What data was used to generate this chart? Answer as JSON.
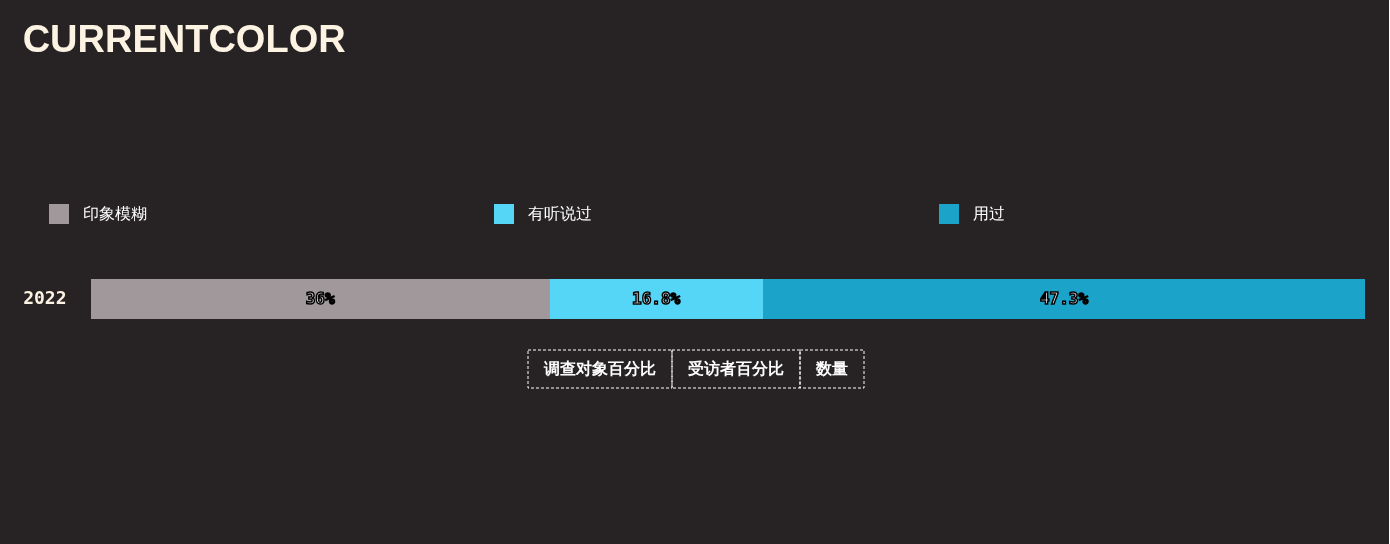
{
  "chart_data": {
    "type": "bar",
    "orientation": "horizontal",
    "stacked": true,
    "title": "CURRENTCOLOR",
    "categories": [
      "2022"
    ],
    "series": [
      {
        "name": "印象模糊",
        "color": "#a0989b",
        "values": [
          36
        ],
        "value_labels": [
          "36%"
        ]
      },
      {
        "name": "有听说过",
        "color": "#55d6f7",
        "values": [
          16.8
        ],
        "value_labels": [
          "16.8%"
        ]
      },
      {
        "name": "用过",
        "color": "#1ba3ca",
        "values": [
          47.3
        ],
        "value_labels": [
          "47.3%"
        ]
      }
    ],
    "xlim": [
      0,
      100.1
    ],
    "tick_labels": "y",
    "legend": "top",
    "annotations": [
      "调查对象百分比",
      "受访者百分比",
      "数量"
    ]
  }
}
